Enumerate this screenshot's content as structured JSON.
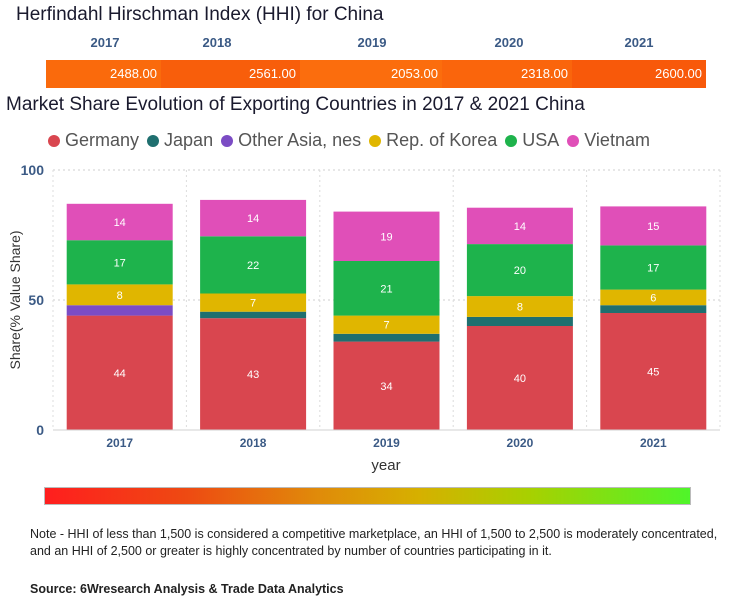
{
  "hhi": {
    "title": "Herfindahl Hirschman Index (HHI) for China",
    "years": [
      "2017",
      "2018",
      "2019",
      "2020",
      "2021"
    ],
    "values": [
      "2488.00",
      "2561.00",
      "2053.00",
      "2318.00",
      "2600.00"
    ],
    "colors": [
      "#fa6a0c",
      "#f85e0b",
      "#fb6d0d",
      "#fa650c",
      "#f8590a"
    ]
  },
  "chart_data": {
    "type": "bar",
    "stacked": true,
    "title": "Market Share Evolution of Exporting Countries in 2017 & 2021 China",
    "categories": [
      "2017",
      "2018",
      "2019",
      "2020",
      "2021"
    ],
    "xlabel": "year",
    "ylabel": "Share(% Value Share)",
    "ylim": [
      0,
      100
    ],
    "yticks": [
      0,
      50,
      100
    ],
    "legend_position": "top",
    "series": [
      {
        "name": "Germany",
        "color": "#d9464f",
        "values": [
          44,
          43,
          34,
          40,
          45
        ],
        "labels": [
          "44",
          "43",
          "34",
          "40",
          "45"
        ]
      },
      {
        "name": "Japan",
        "color": "#1f6f6f",
        "values": [
          0,
          2.5,
          3,
          3.5,
          3
        ],
        "labels": [
          "",
          "",
          "",
          "",
          ""
        ]
      },
      {
        "name": "Other Asia, nes",
        "color": "#7b4cc4",
        "values": [
          4,
          0,
          0,
          0,
          0
        ],
        "labels": [
          "",
          "",
          "",
          "",
          ""
        ]
      },
      {
        "name": "Rep. of Korea",
        "color": "#e0b600",
        "values": [
          8,
          7,
          7,
          8,
          6
        ],
        "labels": [
          "8",
          "7",
          "7",
          "8",
          "6"
        ]
      },
      {
        "name": "USA",
        "color": "#1eb34c",
        "values": [
          17,
          22,
          21,
          20,
          17
        ],
        "labels": [
          "17",
          "22",
          "21",
          "20",
          "17"
        ]
      },
      {
        "name": "Vietnam",
        "color": "#e04fb8",
        "values": [
          14,
          14,
          19,
          14,
          15
        ],
        "labels": [
          "14",
          "14",
          "19",
          "14",
          "15"
        ]
      }
    ]
  },
  "note": "Note - HHI of less than 1,500 is considered a competitive marketplace, an HHI of 1,500 to 2,500 is moderately concentrated, and an HHI of 2,500 or greater is highly concentrated by number of countries participating in it.",
  "source": "Source: 6Wresearch Analysis & Trade Data Analytics"
}
